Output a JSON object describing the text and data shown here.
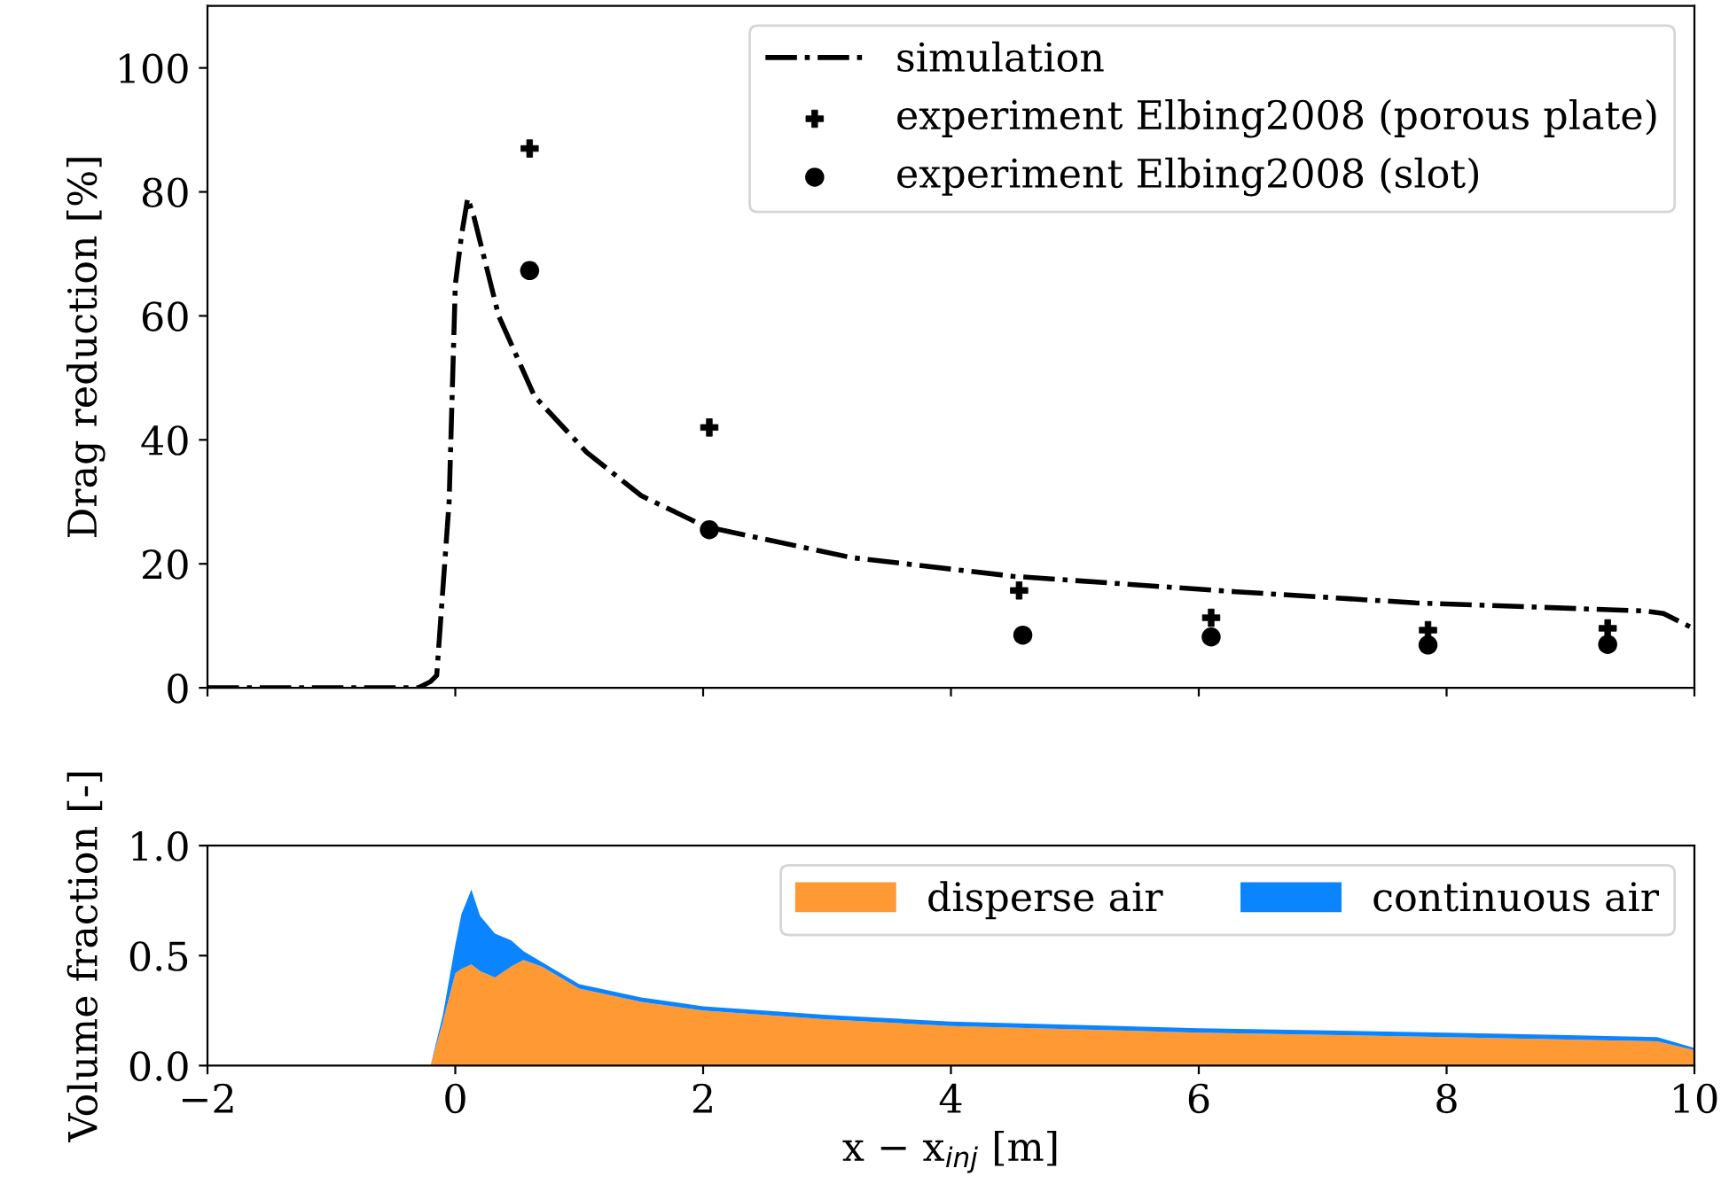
{
  "chart_data": [
    {
      "type": "line",
      "ylabel": "Drag reduction [%]",
      "xlim": [
        -2,
        10
      ],
      "ylim": [
        0,
        110
      ],
      "xticks": [
        -2,
        0,
        2,
        4,
        6,
        8,
        10
      ],
      "yticks": [
        0,
        20,
        40,
        60,
        80,
        100
      ],
      "tick_labels": "y",
      "grid": false,
      "legend": "top right",
      "series": [
        {
          "name": "simulation",
          "type": "line",
          "color": "#000000",
          "line_style": "dashdot",
          "marker": "none",
          "x": [
            -2,
            -0.3,
            -0.2,
            -0.15,
            -0.05,
            0.0,
            0.05,
            0.1,
            0.15,
            0.2,
            0.35,
            0.64,
            1.06,
            1.5,
            2.02,
            3.2,
            4.5,
            6.3,
            7.75,
            9.6,
            9.75,
            10
          ],
          "values": [
            0,
            0,
            1,
            2,
            30,
            65,
            73,
            79,
            76,
            72,
            60,
            47,
            38,
            31,
            26,
            21,
            18,
            15.5,
            13.7,
            12.4,
            12,
            9.5
          ]
        },
        {
          "name": "experiment Elbing2008 (porous plate)",
          "type": "scatter",
          "color": "#000000",
          "marker": "cross",
          "x": [
            0.6,
            2.05,
            4.55,
            6.1,
            7.85,
            9.3
          ],
          "values": [
            87,
            42,
            15.7,
            11.3,
            9.3,
            9.6
          ]
        },
        {
          "name": "experiment Elbing2008 (slot)",
          "type": "scatter",
          "color": "#000000",
          "marker": "circle",
          "x": [
            0.6,
            2.05,
            4.58,
            6.1,
            7.85,
            9.3
          ],
          "values": [
            67.3,
            25.5,
            8.5,
            8.2,
            6.9,
            7
          ]
        }
      ]
    },
    {
      "type": "area",
      "stacked": true,
      "xlabel": "x − x$_{inj}$ [m]",
      "ylabel": "Volume fraction [-]",
      "xlim": [
        -2,
        10
      ],
      "ylim": [
        0,
        1.0
      ],
      "xticks": [
        {
          "value": -2,
          "label": "−2"
        },
        0,
        2,
        4,
        6,
        8,
        10
      ],
      "yticks": [
        {
          "value": 0,
          "label": "0.0"
        },
        0.5,
        {
          "value": 1.0,
          "label": "1.0"
        }
      ],
      "grid": false,
      "legend": "top right",
      "x": [
        -2,
        -0.2,
        -0.1,
        0,
        0.05,
        0.13,
        0.2,
        0.32,
        0.45,
        0.55,
        0.7,
        1,
        1.5,
        2,
        3,
        4,
        6,
        8,
        9.7,
        10
      ],
      "series": [
        {
          "name": "disperse air",
          "color": "#ff9933",
          "values": [
            0,
            0,
            0.2,
            0.42,
            0.44,
            0.46,
            0.43,
            0.4,
            0.45,
            0.48,
            0.45,
            0.35,
            0.29,
            0.25,
            0.21,
            0.18,
            0.15,
            0.13,
            0.11,
            0.07
          ]
        },
        {
          "name": "continuous air",
          "color": "#0a84ff",
          "values": [
            0,
            0,
            0.03,
            0.13,
            0.25,
            0.34,
            0.25,
            0.2,
            0.12,
            0.04,
            0.02,
            0.02,
            0.02,
            0.02,
            0.02,
            0.02,
            0.02,
            0.02,
            0.02,
            0.01
          ]
        }
      ]
    }
  ]
}
